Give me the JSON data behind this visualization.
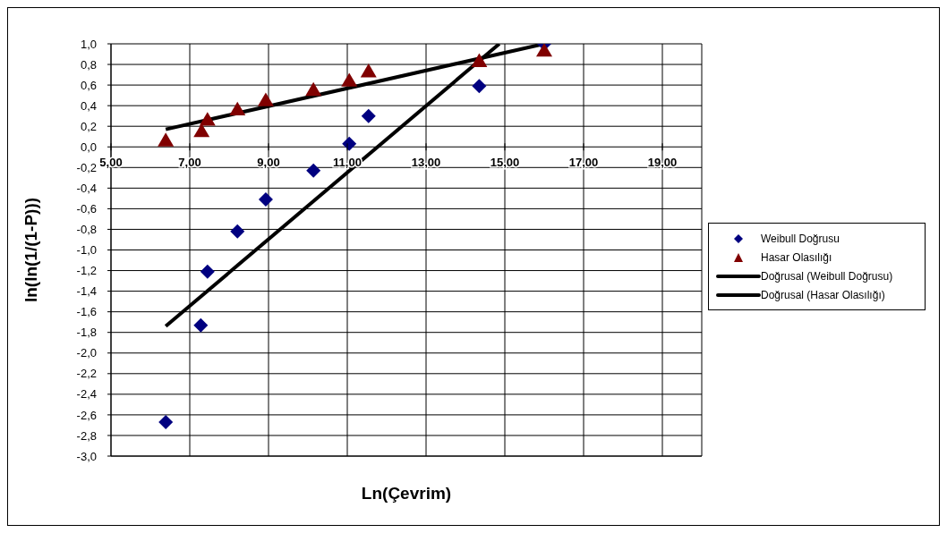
{
  "chart_data": {
    "type": "scatter",
    "xlabel": "Ln(Çevrim)",
    "ylabel": "ln(ln(1/(1-P)))",
    "xlim": [
      5,
      20
    ],
    "ylim": [
      -3,
      1
    ],
    "xticks": [
      {
        "value": 5,
        "label": "5,00"
      },
      {
        "value": 7,
        "label": "7,00"
      },
      {
        "value": 9,
        "label": "9,00"
      },
      {
        "value": 11,
        "label": "11,00"
      },
      {
        "value": 13,
        "label": "13,00"
      },
      {
        "value": 15,
        "label": "15,00"
      },
      {
        "value": 17,
        "label": "17,00"
      },
      {
        "value": 19,
        "label": "19,00"
      }
    ],
    "yticks": [
      {
        "value": 1,
        "label": "1,0"
      },
      {
        "value": 0.8,
        "label": "0,8"
      },
      {
        "value": 0.6,
        "label": "0,6"
      },
      {
        "value": 0.4,
        "label": "0,4"
      },
      {
        "value": 0.2,
        "label": "0,2"
      },
      {
        "value": 0,
        "label": "0,0"
      },
      {
        "value": -0.2,
        "label": "-0,2"
      },
      {
        "value": -0.4,
        "label": "-0,4"
      },
      {
        "value": -0.6,
        "label": "-0,6"
      },
      {
        "value": -0.8,
        "label": "-0,8"
      },
      {
        "value": -1,
        "label": "-1,0"
      },
      {
        "value": -1.2,
        "label": "-1,2"
      },
      {
        "value": -1.4,
        "label": "-1,4"
      },
      {
        "value": -1.6,
        "label": "-1,6"
      },
      {
        "value": -1.8,
        "label": "-1,8"
      },
      {
        "value": -2,
        "label": "-2,0"
      },
      {
        "value": -2.2,
        "label": "-2,2"
      },
      {
        "value": -2.4,
        "label": "-2,4"
      },
      {
        "value": -2.6,
        "label": "-2,6"
      },
      {
        "value": -2.8,
        "label": "-2,8"
      },
      {
        "value": -3,
        "label": "-3,0"
      }
    ],
    "grid": true,
    "legend": "right",
    "series": [
      {
        "name": "Weibull Doğrusu",
        "marker": "diamond",
        "color": "#000080",
        "x": [
          6.39,
          7.28,
          7.45,
          8.21,
          8.93,
          10.14,
          11.05,
          11.54,
          14.35,
          16.0
        ],
        "values": [
          -2.67,
          -1.73,
          -1.21,
          -0.82,
          -0.51,
          -0.23,
          0.03,
          0.3,
          0.59,
          1.0
        ]
      },
      {
        "name": "Hasar Olasılığı",
        "marker": "triangle",
        "color": "#800000",
        "x": [
          6.39,
          7.3,
          7.45,
          8.21,
          8.93,
          10.14,
          11.05,
          11.54,
          14.35,
          16.0
        ],
        "values": [
          0.06,
          0.15,
          0.26,
          0.36,
          0.45,
          0.55,
          0.64,
          0.73,
          0.83,
          0.93
        ]
      },
      {
        "name": "Doğrusal (Weibull Doğrusu)",
        "type": "line",
        "marker": "none",
        "color": "#000000",
        "x": [
          6.39,
          14.86
        ],
        "values": [
          -1.74,
          1.0
        ]
      },
      {
        "name": "Doğrusal (Hasar Olasılığı)",
        "type": "line",
        "marker": "none",
        "color": "#000000",
        "x": [
          6.39,
          16.0
        ],
        "values": [
          0.17,
          1.0
        ]
      }
    ]
  }
}
